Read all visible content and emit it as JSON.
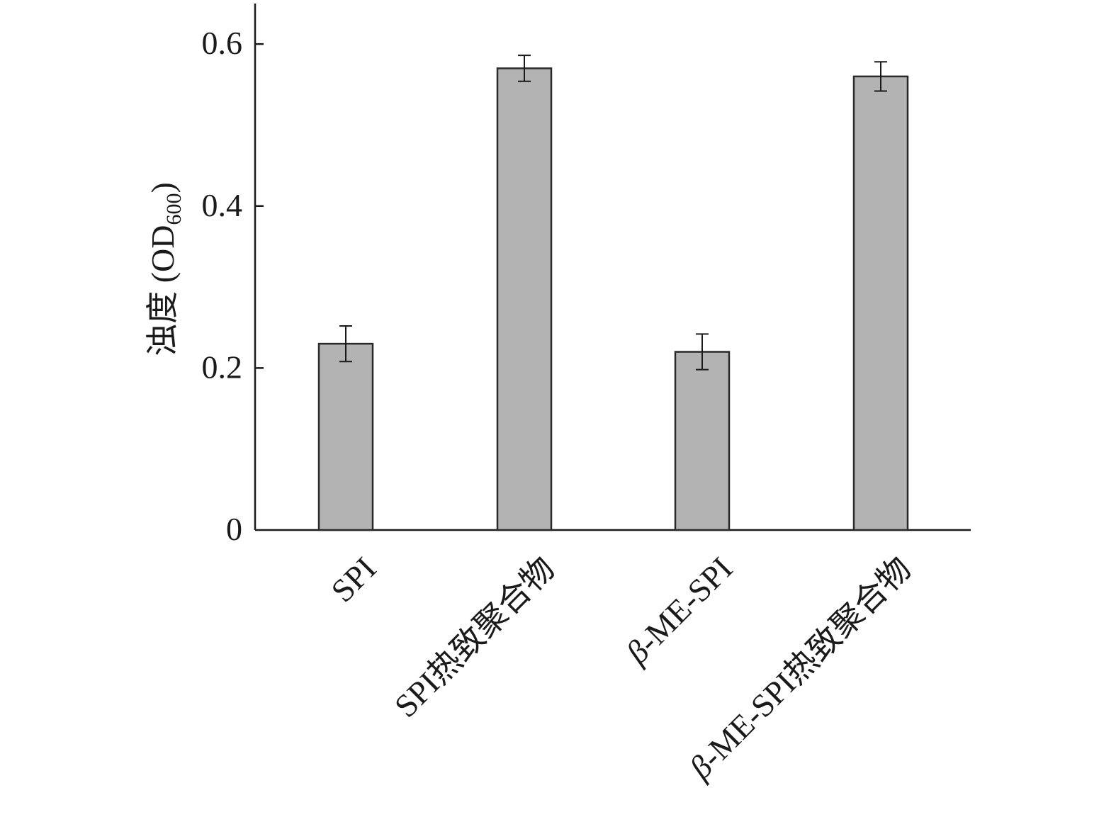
{
  "chart_data": {
    "type": "bar",
    "categories": [
      "SPI",
      "SPI热致聚合物",
      "β-ME-SPI",
      "β-ME-SPI热致聚合物"
    ],
    "category_parts": [
      [
        {
          "text": "SPI",
          "italic": false
        }
      ],
      [
        {
          "text": "SPI热致聚合物",
          "italic": false
        }
      ],
      [
        {
          "text": "β",
          "italic": true
        },
        {
          "text": "-ME-SPI",
          "italic": false
        }
      ],
      [
        {
          "text": "β",
          "italic": true
        },
        {
          "text": "-ME-SPI热致聚合物",
          "italic": false
        }
      ]
    ],
    "values": [
      0.23,
      0.57,
      0.22,
      0.56
    ],
    "errors": [
      0.022,
      0.016,
      0.022,
      0.018
    ],
    "ylabel": "浊度 (OD",
    "ylabel_sub": "600",
    "ylabel_close": ")",
    "ylim": [
      0,
      0.65
    ],
    "yticks": [
      0,
      0.2,
      0.4,
      0.6
    ],
    "ytick_labels": [
      "0",
      "0.2",
      "0.4",
      "0.6"
    ],
    "grid": false,
    "legend": "none",
    "bar_color": "#b3b3b3",
    "bar_edge_color": "#2a2a2a"
  }
}
